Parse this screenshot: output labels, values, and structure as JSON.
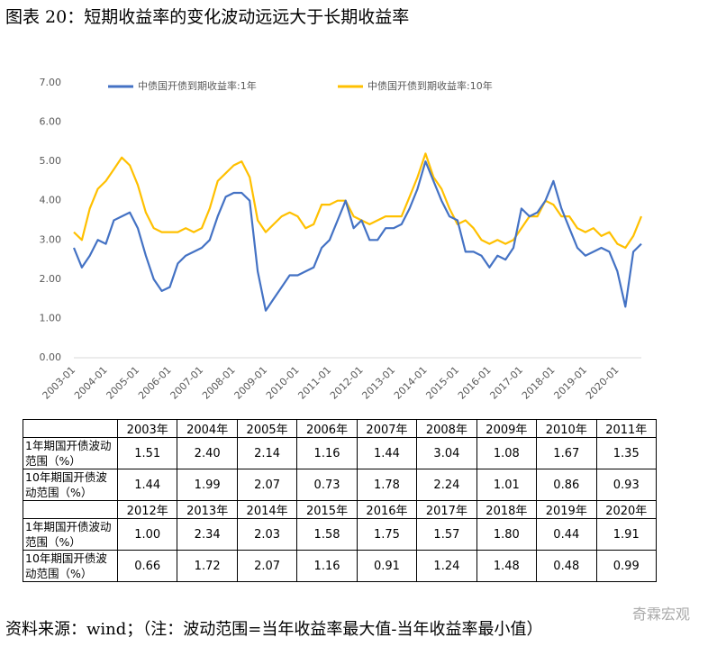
{
  "chart_data": {
    "type": "line",
    "title": "图表 20：短期收益率的变化波动远远大于长期收益率",
    "categories": [
      "2003-01",
      null,
      null,
      null,
      "2004-01",
      null,
      null,
      null,
      "2005-01",
      null,
      null,
      null,
      "2006-01",
      null,
      null,
      null,
      "2007-01",
      null,
      null,
      null,
      "2008-01",
      null,
      null,
      null,
      "2009-01",
      null,
      null,
      null,
      "2010-01",
      null,
      null,
      null,
      "2011-01",
      null,
      null,
      null,
      "2012-01",
      null,
      null,
      null,
      "2013-01",
      null,
      null,
      null,
      "2014-01",
      null,
      null,
      null,
      "2015-01",
      null,
      null,
      null,
      "2016-01",
      null,
      null,
      null,
      "2017-01",
      null,
      null,
      null,
      "2018-01",
      null,
      null,
      null,
      "2019-01",
      null,
      null,
      null,
      "2020-01",
      null,
      null,
      null
    ],
    "series": [
      {
        "name": "中债国开债到期收益率:1年",
        "color": "#4472c4",
        "values": [
          2.8,
          2.3,
          2.6,
          3.0,
          2.9,
          3.5,
          3.6,
          3.7,
          3.3,
          2.6,
          2.0,
          1.7,
          1.8,
          2.4,
          2.6,
          2.7,
          2.8,
          3.0,
          3.6,
          4.1,
          4.2,
          4.2,
          4.0,
          2.2,
          1.2,
          1.5,
          1.8,
          2.1,
          2.1,
          2.2,
          2.3,
          2.8,
          3.0,
          3.5,
          4.0,
          3.3,
          3.5,
          3.0,
          3.0,
          3.3,
          3.3,
          3.4,
          3.8,
          4.3,
          5.0,
          4.5,
          4.0,
          3.6,
          3.5,
          2.7,
          2.7,
          2.6,
          2.3,
          2.6,
          2.5,
          2.8,
          3.8,
          3.6,
          3.7,
          4.0,
          4.5,
          3.8,
          3.3,
          2.8,
          2.6,
          2.7,
          2.8,
          2.7,
          2.2,
          1.3,
          2.7,
          2.9
        ]
      },
      {
        "name": "中债国开债到期收益率:10年",
        "color": "#ffc000",
        "values": [
          3.2,
          3.0,
          3.8,
          4.3,
          4.5,
          4.8,
          5.1,
          4.9,
          4.4,
          3.7,
          3.3,
          3.2,
          3.2,
          3.2,
          3.3,
          3.2,
          3.3,
          3.8,
          4.5,
          4.7,
          4.9,
          5.0,
          4.6,
          3.5,
          3.2,
          3.4,
          3.6,
          3.7,
          3.6,
          3.3,
          3.4,
          3.9,
          3.9,
          4.0,
          4.0,
          3.6,
          3.5,
          3.4,
          3.5,
          3.6,
          3.6,
          3.6,
          4.1,
          4.6,
          5.2,
          4.6,
          4.3,
          3.8,
          3.4,
          3.5,
          3.3,
          3.0,
          2.9,
          3.0,
          2.9,
          3.0,
          3.3,
          3.6,
          3.6,
          4.0,
          3.9,
          3.6,
          3.6,
          3.3,
          3.2,
          3.3,
          3.1,
          3.2,
          2.9,
          2.8,
          3.1,
          3.6
        ]
      }
    ],
    "ylim": [
      0,
      7
    ],
    "yticks": [
      {
        "value": 0,
        "label": "0.00"
      },
      {
        "value": 1,
        "label": "1.00"
      },
      {
        "value": 2,
        "label": "2.00"
      },
      {
        "value": 3,
        "label": "3.00"
      },
      {
        "value": 4,
        "label": "4.00"
      },
      {
        "value": 5,
        "label": "5.00"
      },
      {
        "value": 6,
        "label": "6.00"
      },
      {
        "value": 7,
        "label": "7.00"
      }
    ],
    "grid": false,
    "legend": "top"
  },
  "table": {
    "blocks": [
      {
        "years": [
          "2003年",
          "2004年",
          "2005年",
          "2006年",
          "2007年",
          "2008年",
          "2009年",
          "2010年",
          "2011年"
        ],
        "rows": [
          {
            "label": "1年期国开债波动范围（%）",
            "values": [
              "1.51",
              "2.40",
              "2.14",
              "1.16",
              "1.44",
              "3.04",
              "1.08",
              "1.67",
              "1.35"
            ]
          },
          {
            "label": "10年期国开债波动范围（%）",
            "values": [
              "1.44",
              "1.99",
              "2.07",
              "0.73",
              "1.78",
              "2.24",
              "1.01",
              "0.86",
              "0.93"
            ]
          }
        ]
      },
      {
        "years": [
          "2012年",
          "2013年",
          "2014年",
          "2015年",
          "2016年",
          "2017年",
          "2018年",
          "2019年",
          "2020年"
        ],
        "rows": [
          {
            "label": "1年期国开债波动范围（%）",
            "values": [
              "1.00",
              "2.34",
              "2.03",
              "1.58",
              "1.75",
              "1.57",
              "1.80",
              "0.44",
              "1.91"
            ]
          },
          {
            "label": "10年期国开债波动范围（%）",
            "values": [
              "0.66",
              "1.72",
              "2.07",
              "1.16",
              "0.91",
              "1.24",
              "1.48",
              "0.48",
              "0.99"
            ]
          }
        ]
      }
    ]
  },
  "source": "资料来源：wind；（注：波动范围=当年收益率最大值-当年收益率最小值）",
  "watermark": "奇霖宏观"
}
